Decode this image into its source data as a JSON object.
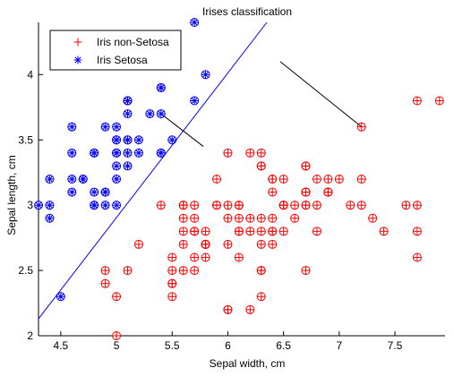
{
  "chart_data": {
    "type": "scatter",
    "title": "Irises classification",
    "xlabel": "Sepal width, cm",
    "ylabel": "Sepal length, cm",
    "xlim": [
      4.3,
      7.95
    ],
    "ylim": [
      2.0,
      4.4
    ],
    "xticks": [
      4.5,
      5,
      5.5,
      6,
      6.5,
      7,
      7.5
    ],
    "xtick_labels": [
      "4.5",
      "5",
      "5.5",
      "6",
      "6.5",
      "7",
      "7.5"
    ],
    "yticks": [
      2,
      2.5,
      3,
      3.5,
      4
    ],
    "ytick_labels": [
      "2",
      "2.5",
      "3",
      "3.5",
      "4"
    ],
    "grid": false,
    "legend_position": "top-left",
    "series": [
      {
        "name": "Iris non-Setosa",
        "marker": "plus",
        "color": "#ff0000",
        "circled": true,
        "points": [
          [
            7.0,
            3.2
          ],
          [
            6.4,
            3.2
          ],
          [
            6.9,
            3.1
          ],
          [
            5.5,
            2.3
          ],
          [
            6.5,
            2.8
          ],
          [
            5.7,
            2.8
          ],
          [
            6.3,
            3.3
          ],
          [
            4.9,
            2.4
          ],
          [
            6.6,
            2.9
          ],
          [
            5.2,
            2.7
          ],
          [
            5.0,
            2.0
          ],
          [
            5.9,
            3.0
          ],
          [
            6.0,
            2.2
          ],
          [
            6.1,
            2.9
          ],
          [
            5.6,
            2.9
          ],
          [
            6.7,
            3.1
          ],
          [
            5.6,
            3.0
          ],
          [
            5.8,
            2.7
          ],
          [
            6.2,
            2.2
          ],
          [
            5.6,
            2.5
          ],
          [
            5.9,
            3.2
          ],
          [
            6.1,
            2.8
          ],
          [
            6.3,
            2.5
          ],
          [
            6.1,
            2.8
          ],
          [
            6.4,
            2.9
          ],
          [
            6.6,
            3.0
          ],
          [
            6.8,
            2.8
          ],
          [
            6.7,
            3.0
          ],
          [
            6.0,
            2.9
          ],
          [
            5.7,
            2.6
          ],
          [
            5.5,
            2.4
          ],
          [
            5.5,
            2.4
          ],
          [
            5.8,
            2.7
          ],
          [
            6.0,
            2.7
          ],
          [
            5.4,
            3.0
          ],
          [
            6.0,
            3.4
          ],
          [
            6.7,
            3.1
          ],
          [
            6.3,
            2.3
          ],
          [
            5.6,
            3.0
          ],
          [
            5.5,
            2.5
          ],
          [
            5.5,
            2.6
          ],
          [
            6.1,
            3.0
          ],
          [
            5.8,
            2.6
          ],
          [
            5.0,
            2.3
          ],
          [
            5.6,
            2.7
          ],
          [
            5.7,
            3.0
          ],
          [
            5.7,
            2.9
          ],
          [
            6.2,
            2.9
          ],
          [
            5.1,
            2.5
          ],
          [
            5.7,
            2.8
          ],
          [
            6.3,
            3.3
          ],
          [
            5.8,
            2.7
          ],
          [
            7.1,
            3.0
          ],
          [
            6.3,
            2.9
          ],
          [
            6.5,
            3.0
          ],
          [
            7.6,
            3.0
          ],
          [
            4.9,
            2.5
          ],
          [
            7.3,
            2.9
          ],
          [
            6.7,
            2.5
          ],
          [
            7.2,
            3.6
          ],
          [
            6.5,
            3.2
          ],
          [
            6.4,
            2.7
          ],
          [
            6.8,
            3.0
          ],
          [
            5.7,
            2.5
          ],
          [
            5.8,
            2.8
          ],
          [
            6.4,
            3.2
          ],
          [
            6.5,
            3.0
          ],
          [
            7.7,
            3.8
          ],
          [
            7.7,
            2.6
          ],
          [
            6.0,
            2.2
          ],
          [
            6.9,
            3.2
          ],
          [
            5.6,
            2.8
          ],
          [
            7.7,
            2.8
          ],
          [
            6.3,
            2.7
          ],
          [
            6.7,
            3.3
          ],
          [
            7.2,
            3.2
          ],
          [
            6.2,
            2.8
          ],
          [
            6.1,
            3.0
          ],
          [
            6.4,
            2.8
          ],
          [
            7.2,
            3.0
          ],
          [
            7.4,
            2.8
          ],
          [
            7.9,
            3.8
          ],
          [
            6.4,
            2.8
          ],
          [
            6.3,
            2.8
          ],
          [
            6.1,
            2.6
          ],
          [
            7.7,
            3.0
          ],
          [
            6.3,
            3.4
          ],
          [
            6.4,
            3.1
          ],
          [
            6.0,
            3.0
          ],
          [
            6.9,
            3.1
          ],
          [
            6.7,
            3.1
          ],
          [
            6.9,
            3.1
          ],
          [
            5.8,
            2.7
          ],
          [
            6.8,
            3.2
          ],
          [
            6.7,
            3.3
          ],
          [
            6.7,
            3.0
          ],
          [
            6.3,
            2.5
          ],
          [
            6.5,
            3.0
          ],
          [
            6.2,
            3.4
          ],
          [
            5.9,
            3.0
          ]
        ]
      },
      {
        "name": "Iris Setosa",
        "marker": "asterisk",
        "color": "#0000ff",
        "circled": true,
        "points": [
          [
            5.1,
            3.5
          ],
          [
            4.9,
            3.0
          ],
          [
            4.7,
            3.2
          ],
          [
            4.6,
            3.1
          ],
          [
            5.0,
            3.6
          ],
          [
            5.4,
            3.9
          ],
          [
            4.6,
            3.4
          ],
          [
            5.0,
            3.4
          ],
          [
            4.4,
            2.9
          ],
          [
            4.9,
            3.1
          ],
          [
            5.4,
            3.7
          ],
          [
            4.8,
            3.4
          ],
          [
            4.8,
            3.0
          ],
          [
            4.3,
            3.0
          ],
          [
            5.8,
            4.0
          ],
          [
            5.7,
            4.4
          ],
          [
            5.4,
            3.9
          ],
          [
            5.1,
            3.5
          ],
          [
            5.7,
            3.8
          ],
          [
            5.1,
            3.8
          ],
          [
            5.4,
            3.4
          ],
          [
            5.1,
            3.7
          ],
          [
            4.6,
            3.6
          ],
          [
            5.1,
            3.3
          ],
          [
            4.8,
            3.4
          ],
          [
            5.0,
            3.0
          ],
          [
            5.0,
            3.4
          ],
          [
            5.2,
            3.5
          ],
          [
            5.2,
            3.4
          ],
          [
            4.7,
            3.2
          ],
          [
            4.8,
            3.1
          ],
          [
            5.4,
            3.4
          ],
          [
            5.2,
            4.1
          ],
          [
            5.5,
            4.2
          ],
          [
            4.9,
            3.1
          ],
          [
            5.0,
            3.2
          ],
          [
            5.5,
            3.5
          ],
          [
            4.9,
            3.6
          ],
          [
            4.4,
            3.0
          ],
          [
            5.1,
            3.4
          ],
          [
            5.0,
            3.5
          ],
          [
            4.5,
            2.3
          ],
          [
            4.4,
            3.2
          ],
          [
            5.0,
            3.5
          ],
          [
            5.1,
            3.8
          ],
          [
            4.8,
            3.0
          ],
          [
            5.1,
            3.8
          ],
          [
            4.6,
            3.2
          ],
          [
            5.3,
            3.7
          ],
          [
            5.0,
            3.3
          ]
        ]
      }
    ],
    "decision_line": {
      "x": [
        4.3,
        6.35
      ],
      "y": [
        2.13,
        4.4
      ],
      "color": "#0000ff"
    },
    "distance_segments": [
      {
        "from": [
          5.4,
          3.7
        ],
        "to": [
          5.78,
          3.45
        ]
      },
      {
        "from": [
          7.2,
          3.6
        ],
        "to": [
          6.47,
          4.1
        ]
      }
    ],
    "distance_color": "#000000"
  }
}
